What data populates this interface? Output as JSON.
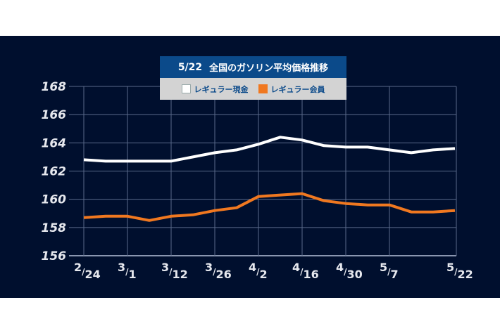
{
  "title": {
    "date": "5/22",
    "text": "全国のガソリン平均価格推移"
  },
  "legend": [
    {
      "label": "レギュラー現金",
      "color": "#ffffff"
    },
    {
      "label": "レギュラー会員",
      "color": "#f07820"
    }
  ],
  "colors": {
    "background": "#000f2e",
    "grid": "#5a6a8a",
    "title_bg": "#0b4a8a",
    "legend_bg": "#d3d3d3"
  },
  "chart_data": {
    "type": "line",
    "title": "5/22 全国のガソリン平均価格推移",
    "xlabel": "",
    "ylabel": "",
    "ylim": [
      156,
      168
    ],
    "yticks": [
      156,
      158,
      160,
      162,
      164,
      166,
      168
    ],
    "xtick_labels": [
      "2/24",
      "3/1",
      "3/12",
      "3/26",
      "4/2",
      "4/16",
      "4/30",
      "5/7",
      "5/22"
    ],
    "grid": true,
    "legend_position": "top-center",
    "point_count": 18,
    "series": [
      {
        "name": "レギュラー現金",
        "color": "#ffffff",
        "values": [
          162.8,
          162.7,
          162.7,
          162.7,
          162.7,
          163.0,
          163.3,
          163.5,
          163.9,
          164.4,
          164.2,
          163.8,
          163.7,
          163.7,
          163.5,
          163.3,
          163.5,
          163.6
        ]
      },
      {
        "name": "レギュラー会員",
        "color": "#f07820",
        "values": [
          158.7,
          158.8,
          158.8,
          158.5,
          158.8,
          158.9,
          159.2,
          159.4,
          160.2,
          160.3,
          160.4,
          159.9,
          159.7,
          159.6,
          159.6,
          159.1,
          159.1,
          159.2
        ]
      }
    ]
  }
}
